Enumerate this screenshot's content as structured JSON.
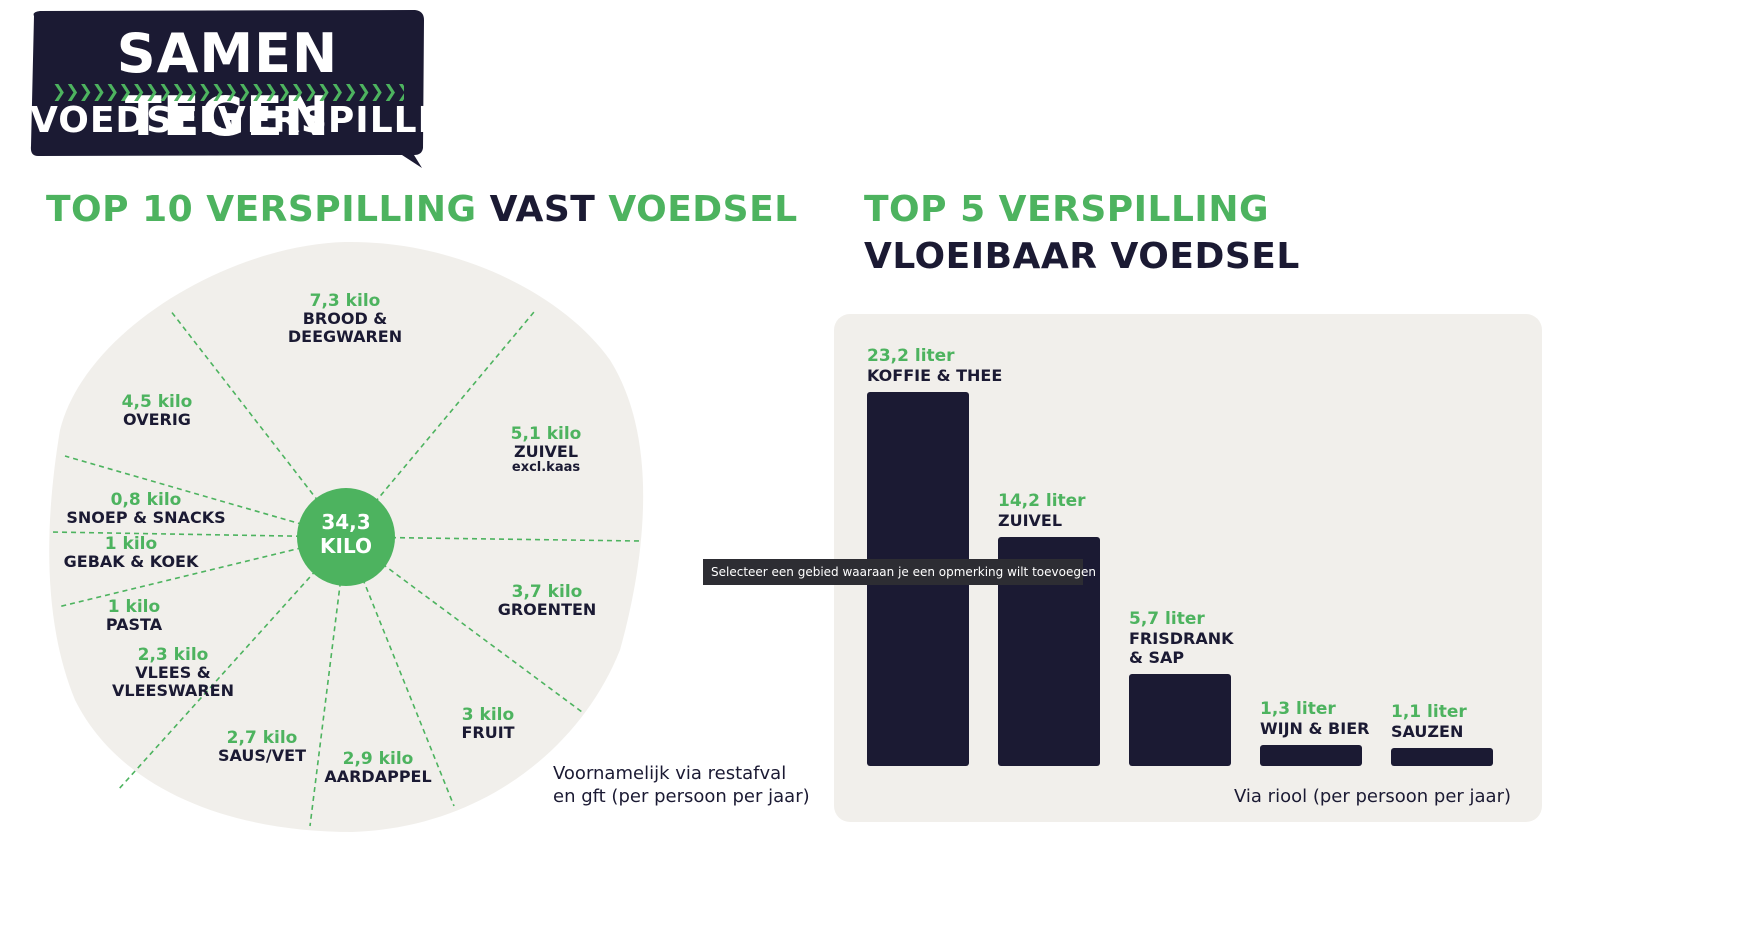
{
  "logo": {
    "line1": "SAMEN TEGEN",
    "line2": "VOEDSELVERSPILLING",
    "colors": {
      "background": "#1b1a33",
      "accent": "#4db35f"
    }
  },
  "tooltip": "Selecteer een gebied waaraan je een opmerking wilt toevoegen",
  "colors": {
    "green": "#4db35f",
    "navy": "#1b1a33",
    "panel": "#f1efeb"
  },
  "chart_data": [
    {
      "type": "pie",
      "title_parts": [
        {
          "text": "TOP 10 VERSPILLING ",
          "color": "green"
        },
        {
          "text": "VAST ",
          "color": "navy"
        },
        {
          "text": "VOEDSEL",
          "color": "green"
        }
      ],
      "center_label": [
        "34,3",
        "KILO"
      ],
      "slices": [
        {
          "value_label": "7,3 kilo",
          "category": [
            "BROOD &",
            "DEEGWAREN"
          ],
          "value": 7.3
        },
        {
          "value_label": "5,1 kilo",
          "category": [
            "ZUIVEL"
          ],
          "sub": "excl.kaas",
          "value": 5.1
        },
        {
          "value_label": "3,7 kilo",
          "category": [
            "GROENTEN"
          ],
          "value": 3.7
        },
        {
          "value_label": "3 kilo",
          "category": [
            "FRUIT"
          ],
          "value": 3
        },
        {
          "value_label": "2,9 kilo",
          "category": [
            "AARDAPPEL"
          ],
          "value": 2.9
        },
        {
          "value_label": "2,7 kilo",
          "category": [
            "SAUS/VET"
          ],
          "value": 2.7
        },
        {
          "value_label": "2,3 kilo",
          "category": [
            "VLEES &",
            "VLEESWAREN"
          ],
          "value": 2.3
        },
        {
          "value_label": "1 kilo",
          "category": [
            "PASTA"
          ],
          "value": 1
        },
        {
          "value_label": "1 kilo",
          "category": [
            "GEBAK & KOEK"
          ],
          "value": 1
        },
        {
          "value_label": "0,8 kilo",
          "category": [
            "SNOEP & SNACKS"
          ],
          "value": 0.8
        },
        {
          "value_label": "4,5 kilo",
          "category": [
            "OVERIG"
          ],
          "value": 4.5
        }
      ],
      "note": [
        "Voornamelijk via restafval",
        "en gft (per persoon per jaar)"
      ]
    },
    {
      "type": "bar",
      "title_parts": [
        {
          "text": "TOP 5 VERSPILLING ",
          "color": "green"
        },
        {
          "text": "VLOEIBAAR VOEDSEL",
          "color": "navy"
        }
      ],
      "categories": [
        [
          "KOFFIE & THEE"
        ],
        [
          "ZUIVEL"
        ],
        [
          "FRISDRANK",
          "& SAP"
        ],
        [
          "WIJN & BIER"
        ],
        [
          "SAUZEN"
        ]
      ],
      "value_labels": [
        "23,2 liter",
        "14,2 liter",
        "5,7 liter",
        "1,3 liter",
        "1,1 liter"
      ],
      "values": [
        23.2,
        14.2,
        5.7,
        1.3,
        1.1
      ],
      "unit": "liter",
      "note": "Via riool (per persoon per jaar)"
    }
  ]
}
